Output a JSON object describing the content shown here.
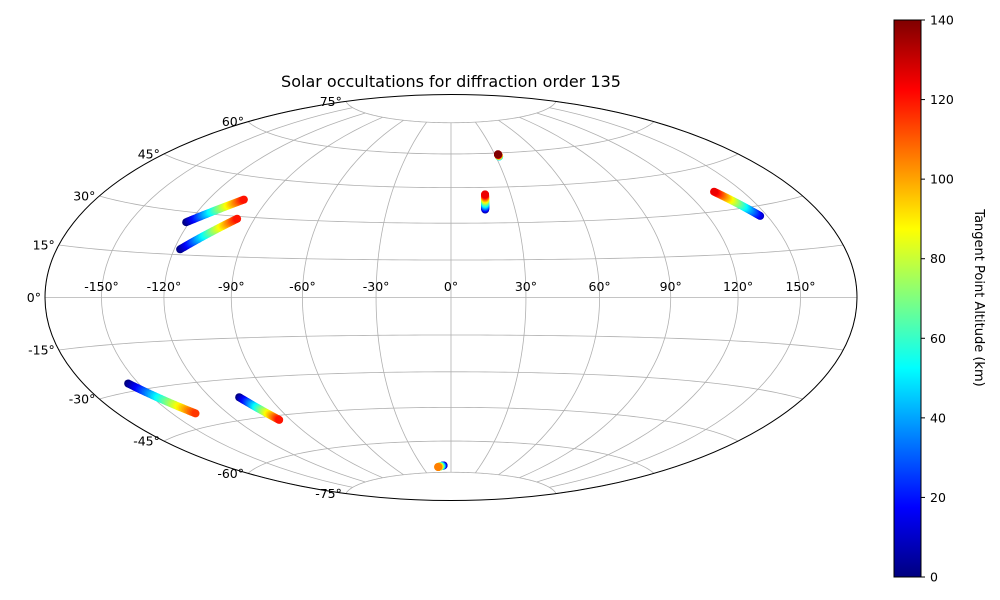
{
  "chart_data": {
    "type": "scatter",
    "projection": "hammer",
    "title": "Solar occultations for diffraction order 135",
    "grid": true,
    "lon_tick_labels": [
      "-150°",
      "-120°",
      "-90°",
      "-60°",
      "-30°",
      "0°",
      "30°",
      "60°",
      "90°",
      "120°",
      "150°"
    ],
    "lon_ticks": [
      -150,
      -120,
      -90,
      -60,
      -30,
      0,
      30,
      60,
      90,
      120,
      150
    ],
    "lat_ticks": [
      -75,
      -60,
      -45,
      -30,
      -15,
      0,
      15,
      30,
      45,
      60,
      75
    ],
    "lat_tick_labels": [
      "-75°",
      "-60°",
      "-45°",
      "-30°",
      "-15°",
      "0°",
      "15°",
      "30°",
      "45°",
      "60°",
      "75°"
    ],
    "colorbar": {
      "label": "Tangent Point Altitude (km)",
      "colormap": "jet",
      "range": [
        0,
        140
      ],
      "tick_values": [
        0,
        20,
        40,
        60,
        80,
        100,
        120,
        140
      ],
      "tick_labels": [
        "0",
        "20",
        "40",
        "60",
        "80",
        "100",
        "120",
        "140"
      ]
    },
    "tracks": [
      {
        "lon_start": -121.6,
        "lat_start": 26.4,
        "lon_end": -102.0,
        "lat_end": 36.3,
        "alt_start": 0,
        "alt_end": 120
      },
      {
        "lon_start": -117.2,
        "lat_start": 16.9,
        "lon_end": -98.2,
        "lat_end": 29.1,
        "alt_start": 0,
        "alt_end": 120
      },
      {
        "lon_start": 16.0,
        "lat_start": 35.6,
        "lon_end": 17.1,
        "lat_end": 42.0,
        "alt_start": 5,
        "alt_end": 125
      },
      {
        "lon_start": 32.2,
        "lat_start": 58.4,
        "lon_end": 32.2,
        "lat_end": 59.4,
        "alt_start": 45,
        "alt_end": 140
      },
      {
        "lon_start": 146.3,
        "lat_start": 26.8,
        "lon_end": 134.8,
        "lat_end": 36.6,
        "alt_start": 10,
        "alt_end": 125
      },
      {
        "lon_start": -155.5,
        "lat_start": -27.5,
        "lon_end": -137.3,
        "lat_end": -40.2,
        "alt_start": 0,
        "alt_end": 115
      },
      {
        "lon_start": -105.2,
        "lat_start": -36.8,
        "lon_end": -96.3,
        "lat_end": -46.7,
        "alt_start": 0,
        "alt_end": 120
      },
      {
        "lon_start": -7.6,
        "lat_start": -71.6,
        "lon_end": -13.7,
        "lat_end": -72.3,
        "alt_start": 0,
        "alt_end": 105
      }
    ]
  }
}
